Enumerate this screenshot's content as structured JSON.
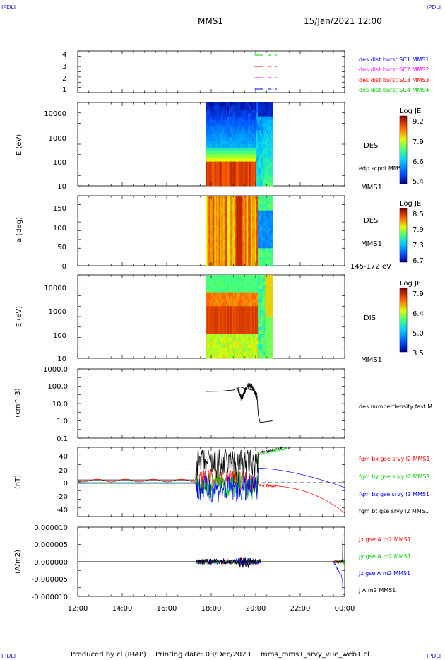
{
  "corner_label": "IPDLI",
  "header": {
    "title": "MMS1",
    "date": "15/Jan/2021 12:00"
  },
  "footer": {
    "produced": "Produced by cl (IRAP)",
    "printing": "Printing date: 03/Dec/2023",
    "script": "mms_mms1_srvy_vue_web1.cl"
  },
  "colors": {
    "black": "#000000",
    "red": "#ff0000",
    "green": "#00c800",
    "blue": "#0000ff",
    "magenta": "#ff00ff"
  },
  "chart_data": [
    {
      "type": "line",
      "id": "burst",
      "yticks": [
        "4",
        "3",
        "2",
        "1"
      ],
      "series": [
        {
          "name": "des dist burst SC1 MMS1",
          "color": "#0000ff",
          "level": 1
        },
        {
          "name": "des dist burst SC2 MMS2",
          "color": "#ff00ff",
          "level": 2
        },
        {
          "name": "des dist burst SC3 MMS3",
          "color": "#ff0000",
          "level": 3
        },
        {
          "name": "des dist burst SC4 MMS4",
          "color": "#00c800",
          "level": 4
        }
      ],
      "segments_hours": [
        [
          19.95,
          20.35
        ],
        [
          20.55,
          20.95
        ]
      ]
    },
    {
      "type": "heatmap",
      "id": "des_energy",
      "ylabel": "E (eV)",
      "yscale": "log",
      "ylim": [
        10,
        30000
      ],
      "yticks": [
        "10000",
        "1000",
        "100",
        "10"
      ],
      "right_labels": [
        "DES",
        "edp scpot MMS1",
        "MMS1"
      ],
      "colorbar": {
        "title": "Log JE",
        "ticks": [
          "9.2",
          "7.9",
          "6.6",
          "5.4"
        ]
      },
      "x_range_hours": [
        17.75,
        20.75
      ]
    },
    {
      "type": "heatmap",
      "id": "des_pitch",
      "ylabel": "a (deg)",
      "ylim": [
        0,
        180
      ],
      "yticks": [
        "150",
        "100",
        "50",
        "0"
      ],
      "right_labels": [
        "DES",
        "MMS1",
        "145-172 eV"
      ],
      "colorbar": {
        "title": "Log JE",
        "ticks": [
          "8.5",
          "7.9",
          "7.3",
          "6.7"
        ]
      },
      "x_range_hours": [
        17.75,
        20.75
      ]
    },
    {
      "type": "heatmap",
      "id": "dis_energy",
      "ylabel": "E (eV)",
      "yscale": "log",
      "ylim": [
        10,
        30000
      ],
      "yticks": [
        "10000",
        "1000",
        "100",
        "10"
      ],
      "right_labels": [
        "DIS",
        "MMS1"
      ],
      "colorbar": {
        "title": "Log JE",
        "ticks": [
          "7.9",
          "6.4",
          "5.0",
          "3.5"
        ]
      },
      "x_range_hours": [
        17.75,
        20.75
      ]
    },
    {
      "type": "line",
      "id": "density",
      "ylabel": "(cm^-3)",
      "yscale": "log",
      "ylim": [
        0.1,
        1000
      ],
      "yticks": [
        "1000.0",
        "100.0",
        "10.0",
        "1.0",
        "0.1"
      ],
      "series": [
        {
          "name": "des numberdensity fast M",
          "color": "#000000"
        }
      ],
      "points": [
        [
          17.75,
          50
        ],
        [
          18.5,
          52
        ],
        [
          19.0,
          60
        ],
        [
          19.3,
          90
        ],
        [
          19.6,
          70
        ],
        [
          19.85,
          60
        ],
        [
          20.05,
          40
        ],
        [
          20.12,
          2
        ],
        [
          20.2,
          0.8
        ],
        [
          20.5,
          0.9
        ],
        [
          20.75,
          1.0
        ]
      ]
    },
    {
      "type": "line",
      "id": "bfield",
      "ylabel": "(nT)",
      "ylim": [
        -50,
        50
      ],
      "yticks": [
        "40",
        "20",
        "0",
        "-20",
        "-40"
      ],
      "series": [
        {
          "name": "fgm bx gse srvy l2 MMS1",
          "color": "#ff0000"
        },
        {
          "name": "fgm by gse srvy l2 MMS1",
          "color": "#00c800"
        },
        {
          "name": "fgm bz gse srvy l2 MMS1",
          "color": "#0000ff"
        },
        {
          "name": "fgm bt gse srvy l2 MMS1",
          "color": "#000000"
        }
      ]
    },
    {
      "type": "line",
      "id": "current",
      "ylabel": "(A/m2)",
      "ylim": [
        -1e-05,
        1e-05
      ],
      "yticks": [
        "0.000010",
        "0.000005",
        "0.000000",
        "-0.000005",
        "-0.000010"
      ],
      "series": [
        {
          "name": "Jx gse A m2 MMS1",
          "color": "#ff0000"
        },
        {
          "name": "Jy gse A m2 MMS1",
          "color": "#00c800"
        },
        {
          "name": "Jz gse A m2 MMS1",
          "color": "#0000ff"
        },
        {
          "name": "J A m2 MMS1",
          "color": "#000000"
        }
      ]
    }
  ],
  "x_axis": {
    "ticks": [
      "12:00",
      "14:00",
      "16:00",
      "18:00",
      "20:00",
      "22:00",
      "00:00"
    ]
  }
}
